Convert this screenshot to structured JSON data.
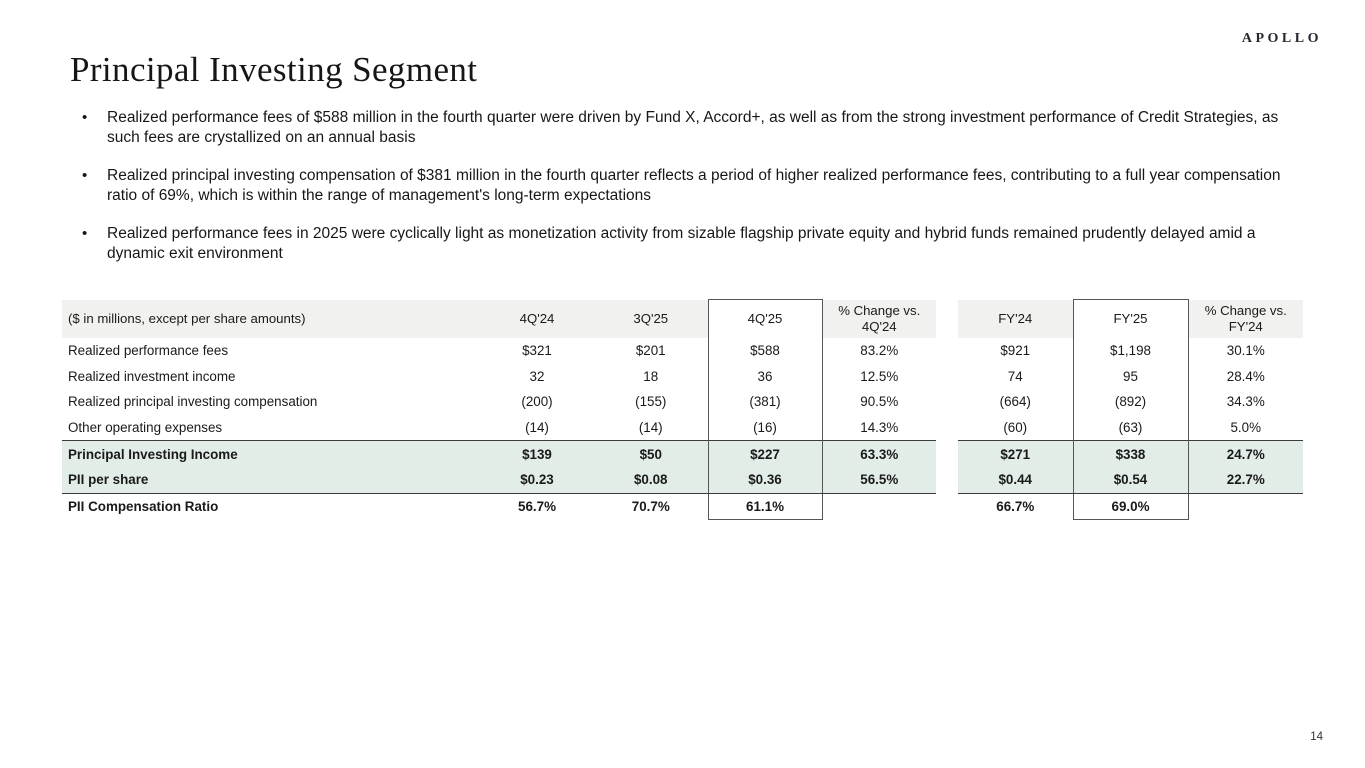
{
  "slide": {
    "logo": "APOLLO",
    "title": "Principal Investing Segment",
    "page_number": "14",
    "bullets": [
      "Realized performance fees of $588 million in the fourth quarter were driven by Fund X, Accord+, as well as from the strong investment performance of Credit Strategies, as such fees are crystallized on an annual basis",
      "Realized principal investing compensation of $381 million in the fourth quarter reflects a period of higher realized performance fees, contributing to a full year compensation ratio of 69%, which is within the range of management's long-term expectations",
      "Realized performance fees in 2025 were cyclically light as monetization activity from sizable flagship private equity and hybrid funds remained prudently delayed amid a dynamic exit environment"
    ]
  },
  "table": {
    "label_header": "($ in millions, except per share amounts)",
    "columns": [
      "4Q'24",
      "3Q'25",
      "4Q'25",
      "% Change vs. 4Q'24",
      "FY'24",
      "FY'25",
      "% Change vs. FY'24"
    ],
    "rows": [
      {
        "label": "Realized performance fees",
        "values": [
          "$321",
          "$201",
          "$588",
          "83.2%",
          "$921",
          "$1,198",
          "30.1%"
        ],
        "bold": false,
        "highlight": false,
        "top_border": false,
        "bottom_border": false
      },
      {
        "label": "Realized investment income",
        "values": [
          "32",
          "18",
          "36",
          "12.5%",
          "74",
          "95",
          "28.4%"
        ],
        "bold": false,
        "highlight": false,
        "top_border": false,
        "bottom_border": false
      },
      {
        "label": "Realized principal investing compensation",
        "values": [
          "(200)",
          "(155)",
          "(381)",
          "90.5%",
          "(664)",
          "(892)",
          "34.3%"
        ],
        "bold": false,
        "highlight": false,
        "top_border": false,
        "bottom_border": false
      },
      {
        "label": "Other operating expenses",
        "values": [
          "(14)",
          "(14)",
          "(16)",
          "14.3%",
          "(60)",
          "(63)",
          "5.0%"
        ],
        "bold": false,
        "highlight": false,
        "top_border": false,
        "bottom_border": false
      },
      {
        "label": "Principal Investing Income",
        "values": [
          "$139",
          "$50",
          "$227",
          "63.3%",
          "$271",
          "$338",
          "24.7%"
        ],
        "bold": true,
        "highlight": true,
        "top_border": true,
        "bottom_border": false
      },
      {
        "label": "PII per share",
        "values": [
          "$0.23",
          "$0.08",
          "$0.36",
          "56.5%",
          "$0.44",
          "$0.54",
          "22.7%"
        ],
        "bold": true,
        "highlight": true,
        "top_border": false,
        "bottom_border": true
      },
      {
        "label": "PII Compensation Ratio",
        "values": [
          "56.7%",
          "70.7%",
          "61.1%",
          "",
          "66.7%",
          "69.0%",
          ""
        ],
        "bold": true,
        "highlight": false,
        "top_border": false,
        "bottom_border": false
      }
    ]
  },
  "colors": {
    "highlight_row": "#e3ede8",
    "header_bg": "#f1f1ef",
    "box_border": "#565656",
    "rule_line": "#3b3b3b"
  }
}
